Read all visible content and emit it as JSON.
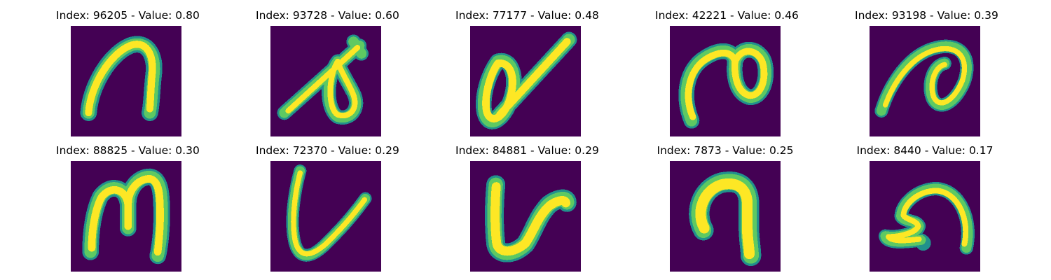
{
  "colors": {
    "background": "#440154",
    "stroke_core": "#fde725",
    "stroke_halo": "#5ec962",
    "stroke_edge": "#21918c"
  },
  "panels": [
    {
      "title": "Index: 96205 - Value: 0.80"
    },
    {
      "title": "Index: 93728 - Value: 0.60"
    },
    {
      "title": "Index: 77177 - Value: 0.48"
    },
    {
      "title": "Index: 42221 - Value: 0.46"
    },
    {
      "title": "Index: 93198 - Value: 0.39"
    },
    {
      "title": "Index: 88825 - Value: 0.30"
    },
    {
      "title": "Index: 72370 - Value: 0.29"
    },
    {
      "title": "Index: 84881 - Value: 0.29"
    },
    {
      "title": "Index: 7873 - Value: 0.25"
    },
    {
      "title": "Index: 8440 - Value: 0.17"
    }
  ]
}
